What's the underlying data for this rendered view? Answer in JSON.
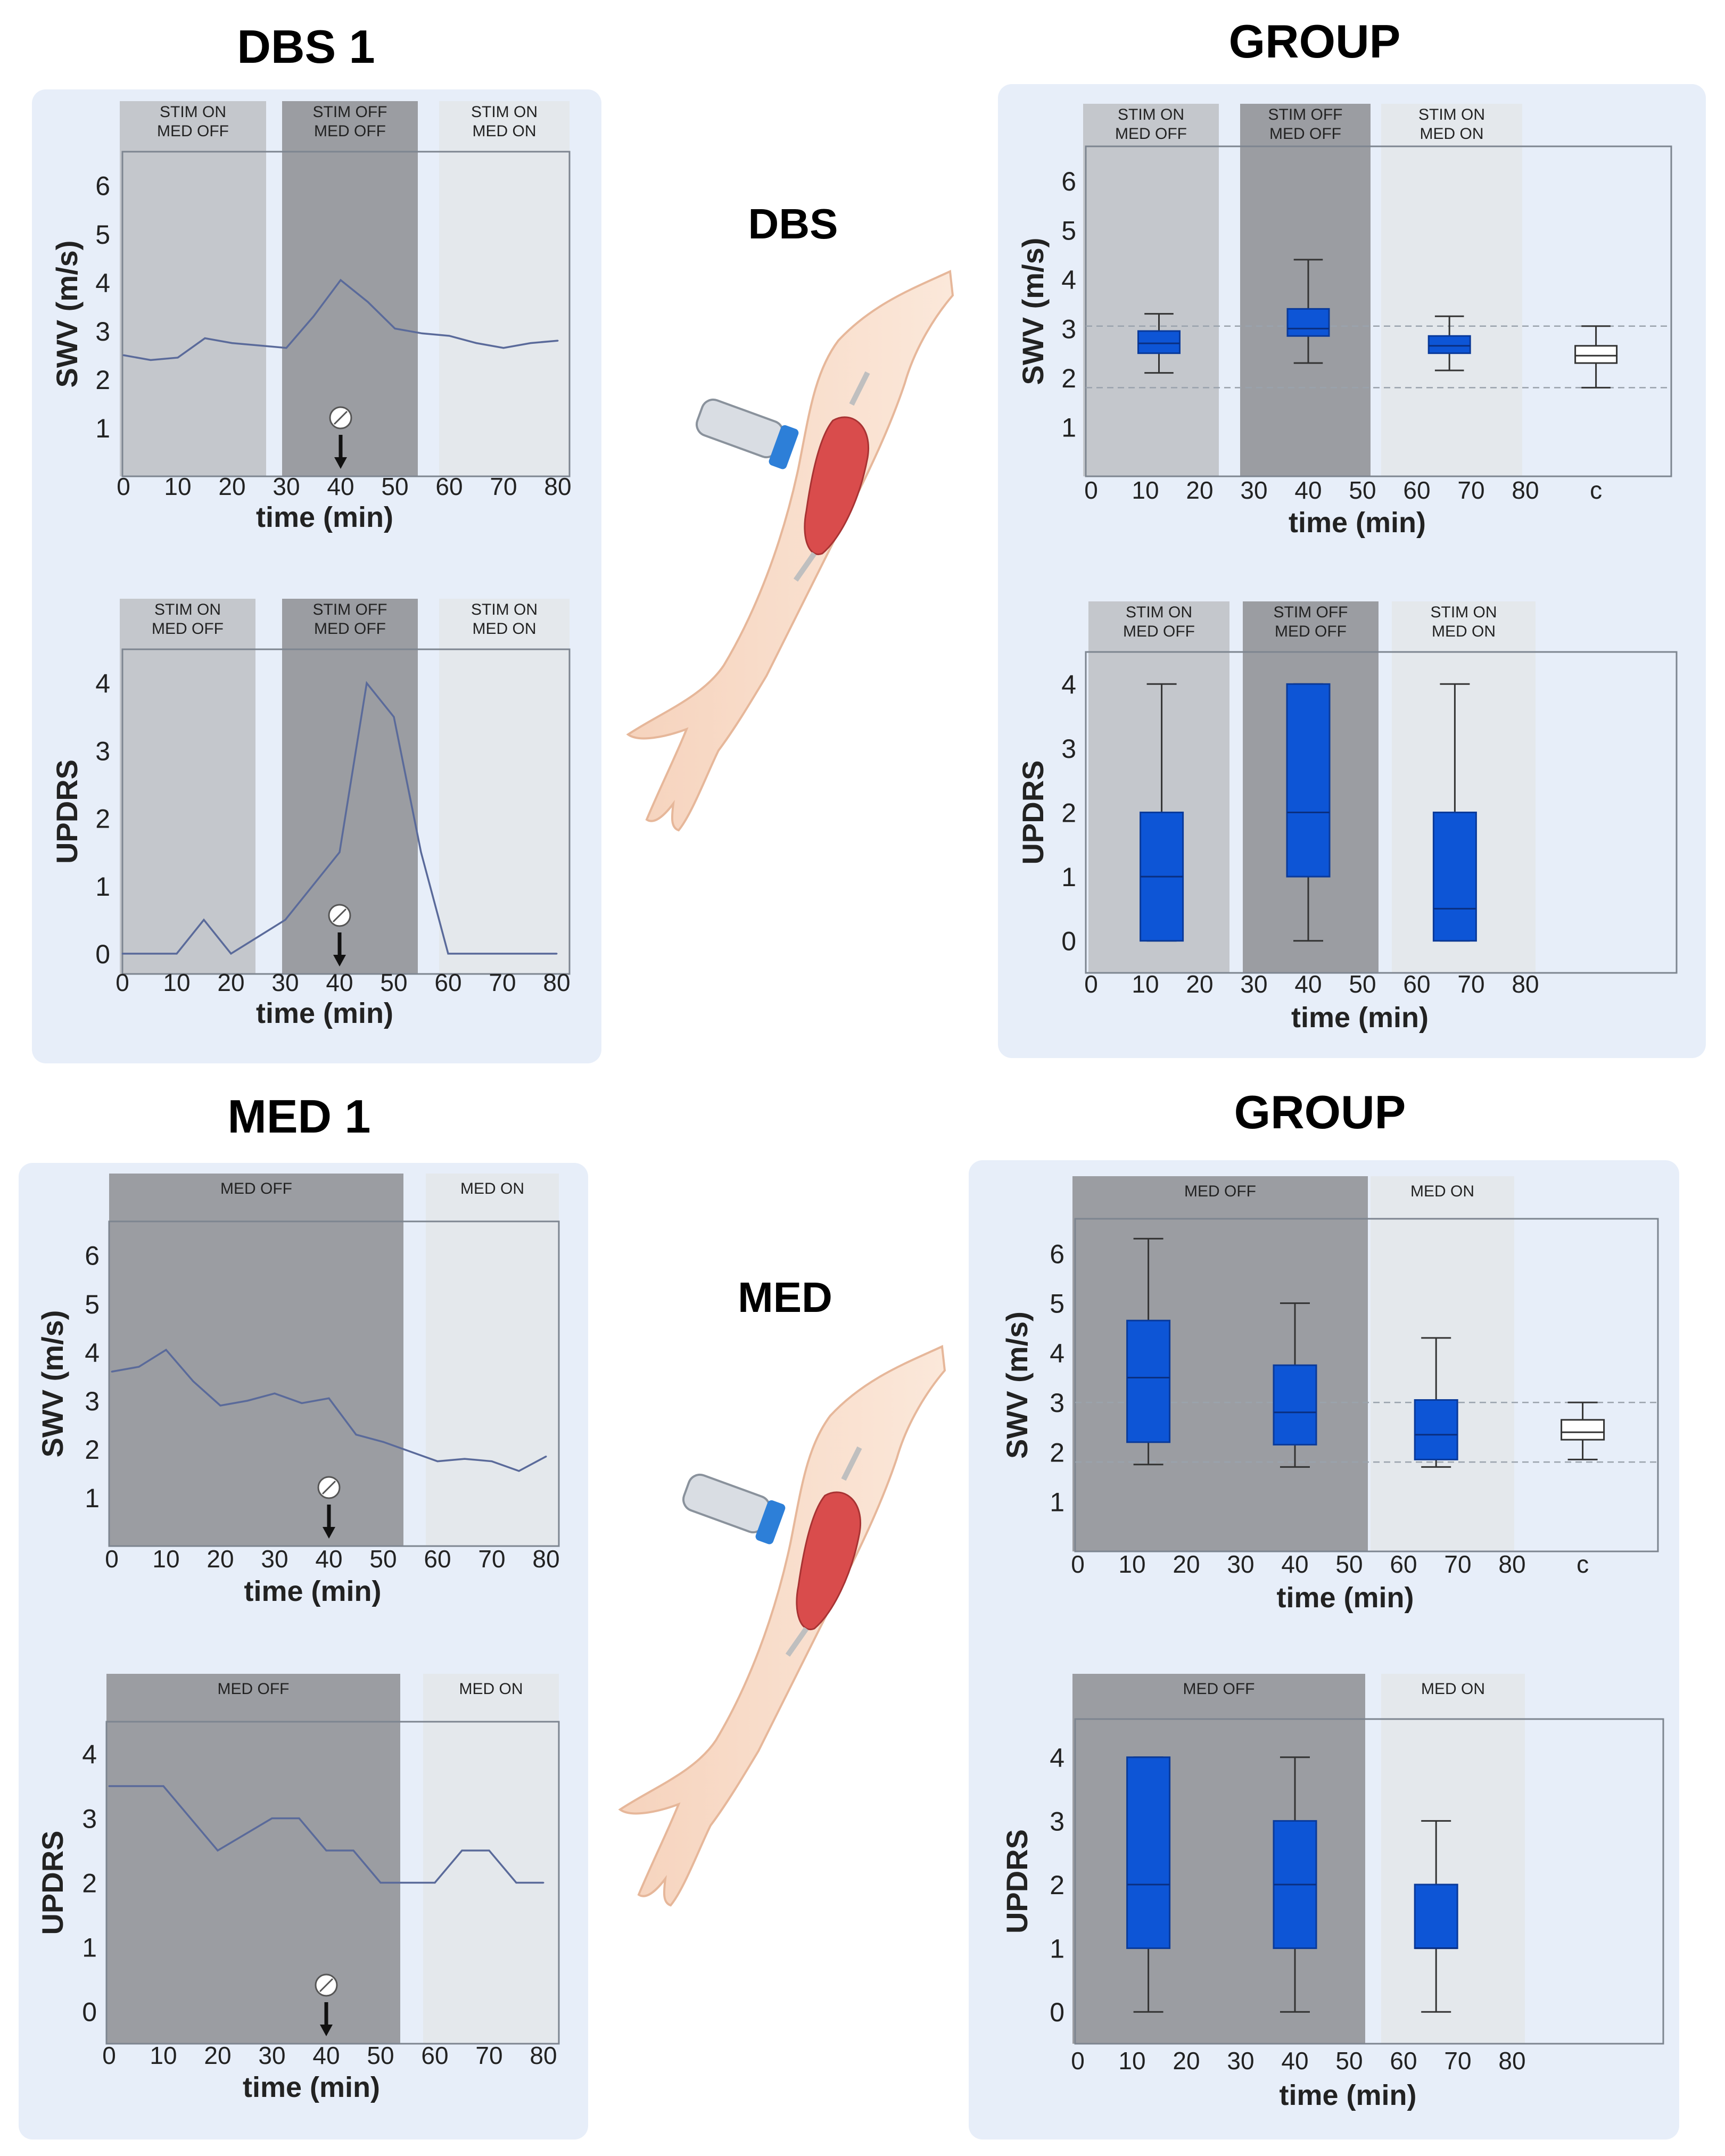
{
  "quadrants": [
    {
      "id": "dbs1",
      "title": "DBS 1"
    },
    {
      "id": "dbsgroup",
      "title": "GROUP"
    },
    {
      "id": "med1",
      "title": "MED 1"
    },
    {
      "id": "medgroup",
      "title": "GROUP"
    }
  ],
  "center_labels": {
    "dbs": "DBS",
    "med": "MED"
  },
  "x_label": "time (min)",
  "colors": {
    "panel_bg": "#e7eef9",
    "box_fill": "#0d55d6",
    "line": "#5a6a9a",
    "phase_dark": "#9b9da2",
    "phase_mid": "#c4c7cc",
    "phase_light": "#e4e8ec"
  },
  "chart_data": [
    {
      "id": "dbs1-swv",
      "type": "line",
      "ylabel": "SWV (m/s)",
      "xlabel": "time (min)",
      "xticks": [
        "0",
        "10",
        "20",
        "30",
        "40",
        "50",
        "60",
        "70",
        "80"
      ],
      "yticks": [
        "1",
        "2",
        "3",
        "4",
        "5",
        "6"
      ],
      "xlim": [
        0,
        80
      ],
      "ylim": [
        0,
        6.7
      ],
      "phases": [
        {
          "label": [
            "STIM ON",
            "MED OFF"
          ]
        },
        {
          "label": [
            "STIM OFF",
            "MED OFF"
          ]
        },
        {
          "label": [
            "STIM ON",
            "MED ON"
          ]
        }
      ],
      "series": [
        {
          "x": [
            0,
            5,
            10,
            15,
            20,
            25,
            30,
            35,
            40,
            45,
            50,
            55,
            60,
            65,
            70,
            75,
            80
          ],
          "y": [
            2.5,
            2.4,
            2.45,
            2.85,
            2.75,
            2.7,
            2.65,
            3.3,
            4.05,
            3.6,
            3.05,
            2.95,
            2.9,
            2.75,
            2.65,
            2.75,
            2.8
          ]
        }
      ],
      "marker_x": 40
    },
    {
      "id": "dbs1-updrs",
      "type": "line",
      "ylabel": "UPDRS",
      "xlabel": "time (min)",
      "xticks": [
        "0",
        "10",
        "20",
        "30",
        "40",
        "50",
        "60",
        "70",
        "80"
      ],
      "yticks": [
        "0",
        "1",
        "2",
        "3",
        "4"
      ],
      "xlim": [
        0,
        80
      ],
      "ylim": [
        -0.3,
        4.5
      ],
      "phases": [
        {
          "label": [
            "STIM ON",
            "MED OFF"
          ]
        },
        {
          "label": [
            "STIM OFF",
            "MED OFF"
          ]
        },
        {
          "label": [
            "STIM ON",
            "MED ON"
          ]
        }
      ],
      "series": [
        {
          "x": [
            0,
            10,
            15,
            20,
            25,
            30,
            35,
            40,
            45,
            50,
            55,
            60,
            65,
            70,
            75,
            80
          ],
          "y": [
            0,
            0,
            0.5,
            0,
            0.25,
            0.5,
            1,
            1.5,
            4,
            3.5,
            1.5,
            0,
            0,
            0,
            0,
            0
          ]
        }
      ],
      "marker_x": 40
    },
    {
      "id": "dbsgroup-swv",
      "type": "box",
      "ylabel": "SWV (m/s)",
      "xlabel": "time (min)",
      "xticks": [
        "0",
        "10",
        "20",
        "30",
        "40",
        "50",
        "60",
        "70",
        "80",
        "c"
      ],
      "yticks": [
        "1",
        "2",
        "3",
        "4",
        "5",
        "6"
      ],
      "ylim": [
        0,
        6.7
      ],
      "phases": [
        {
          "label": [
            "STIM ON",
            "MED OFF"
          ]
        },
        {
          "label": [
            "STIM OFF",
            "MED OFF"
          ]
        },
        {
          "label": [
            "STIM ON",
            "MED ON"
          ]
        }
      ],
      "ref_lines": [
        3.05,
        1.8
      ],
      "boxes": [
        {
          "x": 12.5,
          "min": 2.1,
          "q1": 2.5,
          "median": 2.7,
          "q3": 2.95,
          "max": 3.3,
          "fill": true
        },
        {
          "x": 40,
          "min": 2.3,
          "q1": 2.85,
          "median": 3.0,
          "q3": 3.4,
          "max": 4.4,
          "fill": true
        },
        {
          "x": 66,
          "min": 2.15,
          "q1": 2.5,
          "median": 2.65,
          "q3": 2.85,
          "max": 3.25,
          "fill": true
        },
        {
          "x": 93,
          "min": 1.8,
          "q1": 2.3,
          "median": 2.45,
          "q3": 2.65,
          "max": 3.05,
          "fill": false
        }
      ]
    },
    {
      "id": "dbsgroup-updrs",
      "type": "box",
      "ylabel": "UPDRS",
      "xlabel": "time (min)",
      "xticks": [
        "0",
        "10",
        "20",
        "30",
        "40",
        "50",
        "60",
        "70",
        "80"
      ],
      "yticks": [
        "0",
        "1",
        "2",
        "3",
        "4"
      ],
      "ylim": [
        -0.5,
        4.5
      ],
      "phases": [
        {
          "label": [
            "STIM ON",
            "MED OFF"
          ]
        },
        {
          "label": [
            "STIM OFF",
            "MED OFF"
          ]
        },
        {
          "label": [
            "STIM ON",
            "MED ON"
          ]
        }
      ],
      "ref_lines": [],
      "boxes": [
        {
          "x": 13,
          "min": 0,
          "q1": 0,
          "median": 1,
          "q3": 2,
          "max": 4,
          "fill": true
        },
        {
          "x": 40,
          "min": 0,
          "q1": 1,
          "median": 2,
          "q3": 4,
          "max": 4,
          "fill": true
        },
        {
          "x": 67,
          "min": 0,
          "q1": 0,
          "median": 0.5,
          "q3": 2,
          "max": 4,
          "fill": true
        }
      ]
    },
    {
      "id": "med1-swv",
      "type": "line",
      "ylabel": "SWV (m/s)",
      "xlabel": "time (min)",
      "xticks": [
        "0",
        "10",
        "20",
        "30",
        "40",
        "50",
        "60",
        "70",
        "80"
      ],
      "yticks": [
        "1",
        "2",
        "3",
        "4",
        "5",
        "6"
      ],
      "xlim": [
        0,
        80
      ],
      "ylim": [
        0,
        6.7
      ],
      "phases": [
        {
          "label": [
            "MED OFF"
          ]
        },
        {
          "label": [
            "MED ON"
          ]
        }
      ],
      "series": [
        {
          "x": [
            0,
            5,
            10,
            15,
            20,
            25,
            30,
            35,
            40,
            45,
            50,
            55,
            60,
            65,
            70,
            75,
            80
          ],
          "y": [
            3.6,
            3.7,
            4.05,
            3.4,
            2.9,
            3.0,
            3.15,
            2.95,
            3.05,
            2.3,
            2.15,
            1.95,
            1.75,
            1.8,
            1.75,
            1.55,
            1.85
          ]
        }
      ],
      "marker_x": 40
    },
    {
      "id": "med1-updrs",
      "type": "line",
      "ylabel": "UPDRS",
      "xlabel": "time (min)",
      "xticks": [
        "0",
        "10",
        "20",
        "30",
        "40",
        "50",
        "60",
        "70",
        "80"
      ],
      "yticks": [
        "0",
        "1",
        "2",
        "3",
        "4"
      ],
      "xlim": [
        0,
        80
      ],
      "ylim": [
        -0.5,
        4.5
      ],
      "phases": [
        {
          "label": [
            "MED OFF"
          ]
        },
        {
          "label": [
            "MED ON"
          ]
        }
      ],
      "series": [
        {
          "x": [
            0,
            5,
            10,
            15,
            20,
            25,
            30,
            35,
            40,
            45,
            50,
            55,
            60,
            65,
            70,
            75,
            80
          ],
          "y": [
            3.5,
            3.5,
            3.5,
            3,
            2.5,
            2.75,
            3,
            3,
            2.5,
            2.5,
            2,
            2,
            2,
            2.5,
            2.5,
            2,
            2
          ]
        }
      ],
      "marker_x": 40
    },
    {
      "id": "medgroup-swv",
      "type": "box",
      "ylabel": "SWV (m/s)",
      "xlabel": "time (min)",
      "xticks": [
        "0",
        "10",
        "20",
        "30",
        "40",
        "50",
        "60",
        "70",
        "80",
        "c"
      ],
      "yticks": [
        "1",
        "2",
        "3",
        "4",
        "5",
        "6"
      ],
      "ylim": [
        0,
        6.7
      ],
      "phases": [
        {
          "label": [
            "MED OFF"
          ]
        },
        {
          "label": [
            "MED ON"
          ]
        }
      ],
      "ref_lines": [
        3.0,
        1.8
      ],
      "boxes": [
        {
          "x": 13,
          "min": 1.75,
          "q1": 2.2,
          "median": 3.5,
          "q3": 4.65,
          "max": 6.3,
          "fill": true
        },
        {
          "x": 40,
          "min": 1.7,
          "q1": 2.15,
          "median": 2.8,
          "q3": 3.75,
          "max": 5.0,
          "fill": true
        },
        {
          "x": 66,
          "min": 1.7,
          "q1": 1.85,
          "median": 2.35,
          "q3": 3.05,
          "max": 4.3,
          "fill": true
        },
        {
          "x": 93,
          "min": 1.85,
          "q1": 2.25,
          "median": 2.4,
          "q3": 2.65,
          "max": 3.0,
          "fill": false
        }
      ]
    },
    {
      "id": "medgroup-updrs",
      "type": "box",
      "ylabel": "UPDRS",
      "xlabel": "time (min)",
      "xticks": [
        "0",
        "10",
        "20",
        "30",
        "40",
        "50",
        "60",
        "70",
        "80"
      ],
      "yticks": [
        "0",
        "1",
        "2",
        "3",
        "4"
      ],
      "ylim": [
        -0.5,
        4.6
      ],
      "phases": [
        {
          "label": [
            "MED OFF"
          ]
        },
        {
          "label": [
            "MED ON"
          ]
        }
      ],
      "ref_lines": [],
      "boxes": [
        {
          "x": 13,
          "min": 0,
          "q1": 1,
          "median": 2,
          "q3": 4,
          "max": 4,
          "fill": true
        },
        {
          "x": 40,
          "min": 0,
          "q1": 1,
          "median": 2,
          "q3": 3,
          "max": 4,
          "fill": true
        },
        {
          "x": 66,
          "min": 0,
          "q1": 1,
          "median": 1,
          "q3": 2,
          "max": 3,
          "fill": true
        }
      ]
    }
  ]
}
